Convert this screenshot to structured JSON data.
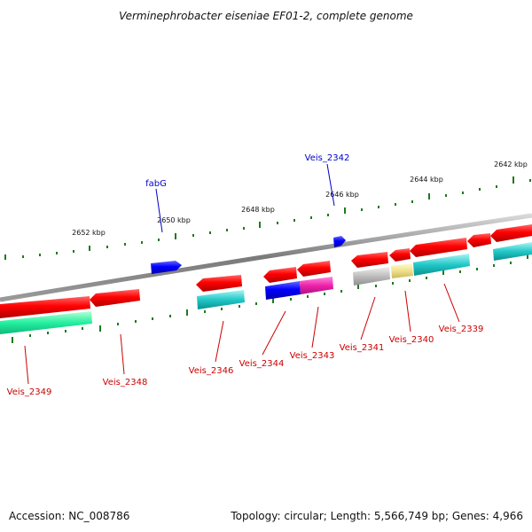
{
  "title": "Verminephrobacter eiseniae EF01-2, complete genome",
  "footer": {
    "accession": "Accession: NC_008786",
    "topology": "Topology: circular; Length: 5,566,749 bp; Genes: 4,966"
  },
  "colors": {
    "backbone": "#8a8a8a",
    "tick": "#1e7a1e",
    "label_red": "#cc0000",
    "label_blue": "#0000cc"
  },
  "scale_labels": [
    "2652 kbp",
    "2650 kbp",
    "2648 kbp",
    "2646 kbp",
    "2644 kbp",
    "2642 kbp"
  ],
  "gene_labels": [
    "fabG",
    "Veis_2342",
    "Veis_2349",
    "Veis_2348",
    "Veis_2346",
    "Veis_2344",
    "Veis_2343",
    "Veis_2341",
    "Veis_2340",
    "Veis_2339"
  ]
}
